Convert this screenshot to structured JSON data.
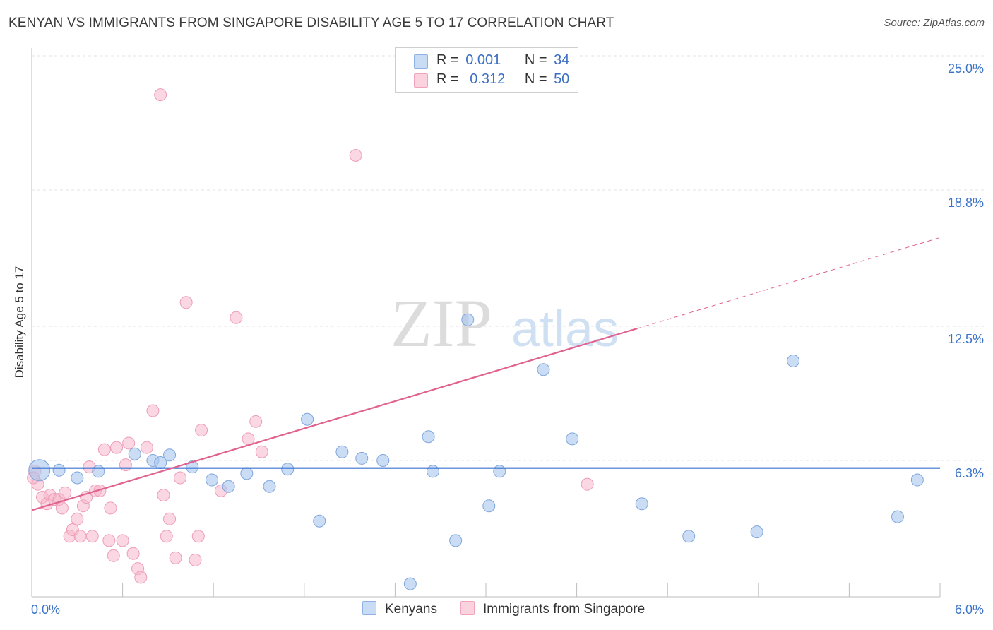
{
  "title": "KENYAN VS IMMIGRANTS FROM SINGAPORE DISABILITY AGE 5 TO 17 CORRELATION CHART",
  "source": "Source: ZipAtlas.com",
  "watermark": {
    "zip": "ZIP",
    "atlas": "atlas"
  },
  "legend": {
    "r_label": "R =",
    "n_label": "N =",
    "series": [
      {
        "name": "Kenyans",
        "r": "0.001",
        "n": "34"
      },
      {
        "name": "Immigrants from Singapore",
        "r": "0.312",
        "n": "50"
      }
    ]
  },
  "chart_data": {
    "type": "scatter",
    "title": "KENYAN VS IMMIGRANTS FROM SINGAPORE DISABILITY AGE 5 TO 17 CORRELATION CHART",
    "ylabel": "Disability Age 5 to 17",
    "xlabel": "",
    "xlim": [
      0,
      6
    ],
    "ylim": [
      0,
      25
    ],
    "x_tick_labels": [
      "0.0%",
      "6.0%"
    ],
    "y_ticks": [
      6.3,
      12.5,
      18.8,
      25.0
    ],
    "y_tick_labels": [
      "6.3%",
      "12.5%",
      "18.8%",
      "25.0%"
    ],
    "colors": {
      "Kenyans": "#a9c6ee",
      "Kenyans_line": "#3b73d1",
      "Immigrants from Singapore": "#f5b6ca",
      "Immigrants from Singapore_line": "#e0628f"
    },
    "series": [
      {
        "name": "Kenyans",
        "trend": {
          "x0": 0.0,
          "y0": 5.95,
          "x1": 6.0,
          "y1": 5.95,
          "dashed_from": null
        },
        "points": [
          [
            0.05,
            5.85
          ],
          [
            0.18,
            5.85
          ],
          [
            0.3,
            5.5
          ],
          [
            0.44,
            5.8
          ],
          [
            0.68,
            6.6
          ],
          [
            0.8,
            6.3
          ],
          [
            0.85,
            6.2
          ],
          [
            0.91,
            6.55
          ],
          [
            1.06,
            6.0
          ],
          [
            1.19,
            5.4
          ],
          [
            1.3,
            5.1
          ],
          [
            1.42,
            5.7
          ],
          [
            1.57,
            5.1
          ],
          [
            1.69,
            5.9
          ],
          [
            1.82,
            8.2
          ],
          [
            1.9,
            3.5
          ],
          [
            2.05,
            6.7
          ],
          [
            2.18,
            6.4
          ],
          [
            2.32,
            6.3
          ],
          [
            2.5,
            0.6
          ],
          [
            2.62,
            7.4
          ],
          [
            2.65,
            5.8
          ],
          [
            2.8,
            2.6
          ],
          [
            2.88,
            12.8
          ],
          [
            3.02,
            4.2
          ],
          [
            3.09,
            5.8
          ],
          [
            3.38,
            10.5
          ],
          [
            3.57,
            7.3
          ],
          [
            4.03,
            4.3
          ],
          [
            4.34,
            2.8
          ],
          [
            4.79,
            3.0
          ],
          [
            5.03,
            10.9
          ],
          [
            5.72,
            3.7
          ],
          [
            5.85,
            5.4
          ]
        ]
      },
      {
        "name": "Immigrants from Singapore",
        "trend": {
          "x0": 0.0,
          "y0": 4.0,
          "x1": 6.0,
          "y1": 16.6,
          "dashed_from": 4.0
        },
        "points": [
          [
            0.02,
            5.8
          ],
          [
            0.04,
            5.2
          ],
          [
            0.07,
            4.6
          ],
          [
            0.1,
            4.3
          ],
          [
            0.12,
            4.7
          ],
          [
            0.15,
            4.5
          ],
          [
            0.18,
            4.5
          ],
          [
            0.2,
            4.1
          ],
          [
            0.22,
            4.8
          ],
          [
            0.25,
            2.8
          ],
          [
            0.27,
            3.1
          ],
          [
            0.3,
            3.6
          ],
          [
            0.32,
            2.8
          ],
          [
            0.34,
            4.2
          ],
          [
            0.36,
            4.6
          ],
          [
            0.38,
            6.0
          ],
          [
            0.4,
            2.8
          ],
          [
            0.42,
            4.9
          ],
          [
            0.45,
            4.9
          ],
          [
            0.48,
            6.8
          ],
          [
            0.51,
            2.6
          ],
          [
            0.52,
            4.1
          ],
          [
            0.54,
            1.9
          ],
          [
            0.56,
            6.9
          ],
          [
            0.6,
            2.6
          ],
          [
            0.62,
            6.1
          ],
          [
            0.64,
            7.1
          ],
          [
            0.67,
            2.0
          ],
          [
            0.7,
            1.3
          ],
          [
            0.72,
            0.9
          ],
          [
            0.76,
            6.9
          ],
          [
            0.8,
            8.6
          ],
          [
            0.85,
            23.2
          ],
          [
            0.87,
            4.7
          ],
          [
            0.89,
            2.8
          ],
          [
            0.91,
            3.6
          ],
          [
            0.95,
            1.8
          ],
          [
            0.98,
            5.5
          ],
          [
            1.02,
            13.6
          ],
          [
            1.08,
            1.7
          ],
          [
            1.1,
            2.8
          ],
          [
            1.12,
            7.7
          ],
          [
            1.25,
            4.9
          ],
          [
            1.35,
            12.9
          ],
          [
            1.43,
            7.3
          ],
          [
            1.48,
            8.1
          ],
          [
            1.52,
            6.7
          ],
          [
            2.14,
            20.4
          ],
          [
            3.67,
            5.2
          ],
          [
            0.01,
            5.5
          ]
        ]
      }
    ]
  }
}
